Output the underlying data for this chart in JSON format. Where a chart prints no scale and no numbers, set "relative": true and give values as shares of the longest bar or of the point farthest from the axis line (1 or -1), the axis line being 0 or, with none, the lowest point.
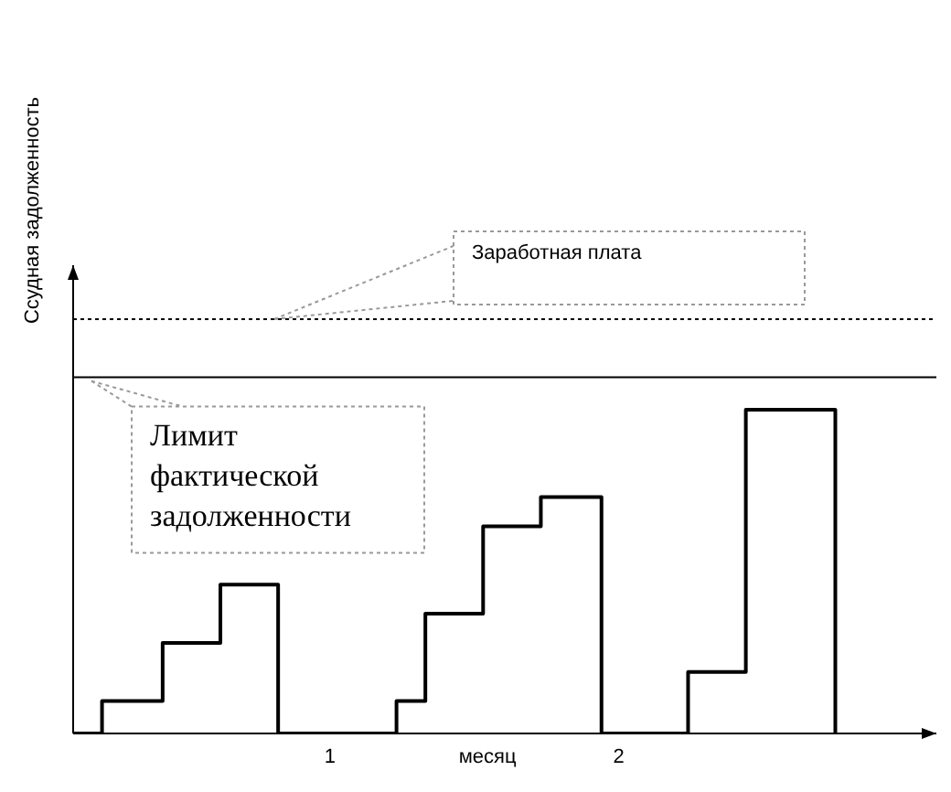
{
  "chart_data": {
    "type": "step",
    "relative": true,
    "xlabel": "месяц",
    "ylabel": "Ссудная задолженность",
    "x": [
      0.11,
      0.21,
      0.42,
      0.62,
      0.82,
      1.23,
      1.33,
      1.53,
      1.73,
      1.94,
      2.24,
      2.44,
      2.75
    ],
    "xlim": [
      0.11,
      3.1
    ],
    "xticks": [
      1,
      2
    ],
    "series": [
      {
        "color": "#000000",
        "values": [
          0,
          0.1,
          0.28,
          0.46,
          0,
          0.1,
          0.37,
          0.64,
          0.73,
          0,
          0.19,
          1,
          0
        ]
      }
    ],
    "ref_lines": [
      {
        "axis": "y",
        "value": 1.28,
        "label": "Заработная плата",
        "line_style": "dotted",
        "color": "#000000"
      },
      {
        "axis": "y",
        "value": 1.1,
        "label": "Лимит фактической задолженности",
        "line_style": "solid",
        "color": "#000000"
      }
    ]
  }
}
